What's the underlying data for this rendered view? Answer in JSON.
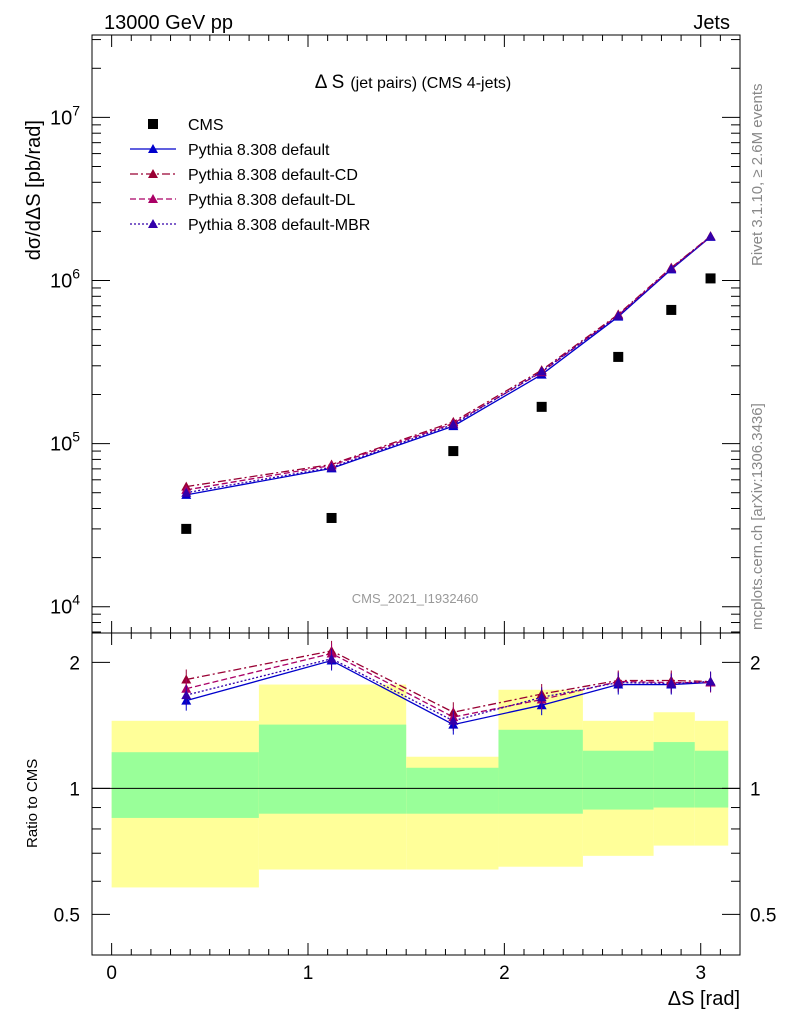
{
  "header": {
    "left": "13000 GeV pp",
    "right": "Jets"
  },
  "side_labels": {
    "rivet": "Rivet 3.1.10, ≥ 2.6M events",
    "mcplots": "mcplots.cern.ch [arXiv:1306.3436]"
  },
  "main_panel": {
    "title_symbol": "Δ S",
    "title_rest": "(jet pairs) (CMS 4-jets)",
    "ylabel": "dσ/dΔS [pb/rad]",
    "watermark": "CMS_2021_I1932460",
    "yticks": [
      {
        "value": 10000,
        "base": "10",
        "exp": "4"
      },
      {
        "value": 100000,
        "base": "10",
        "exp": "5"
      },
      {
        "value": 1000000,
        "base": "10",
        "exp": "6"
      },
      {
        "value": 10000000,
        "base": "10",
        "exp": "7"
      }
    ]
  },
  "ratio_panel": {
    "ylabel": "Ratio to CMS",
    "yticks": [
      {
        "value": 0.5,
        "label": "0.5"
      },
      {
        "value": 1,
        "label": "1"
      },
      {
        "value": 2,
        "label": "2"
      }
    ]
  },
  "xaxis": {
    "label": "ΔS [rad]",
    "ticks": [
      {
        "value": 0,
        "label": "0"
      },
      {
        "value": 1,
        "label": "1"
      },
      {
        "value": 2,
        "label": "2"
      },
      {
        "value": 3,
        "label": "3"
      }
    ]
  },
  "legend": [
    {
      "label": "CMS",
      "color": "#000000",
      "style": "marker"
    },
    {
      "label": "Pythia 8.308 default",
      "color": "#0000cc",
      "style": "solid"
    },
    {
      "label": "Pythia 8.308 default-CD",
      "color": "#990033",
      "style": "dashdot"
    },
    {
      "label": "Pythia 8.308 default-DL",
      "color": "#aa0066",
      "style": "dashed"
    },
    {
      "label": "Pythia 8.308 default-MBR",
      "color": "#3300aa",
      "style": "dotted"
    }
  ],
  "chart_data": {
    "type": "scatter",
    "x_range": [
      -0.1,
      3.2
    ],
    "y_range": [
      6900,
      32000000
    ],
    "y_scale": "log",
    "ratio_range": [
      0.4,
      2.35
    ],
    "ratio_scale": "log",
    "bins": [
      [
        0.0,
        0.75
      ],
      [
        0.75,
        1.5
      ],
      [
        1.5,
        1.97
      ],
      [
        1.97,
        2.4
      ],
      [
        2.4,
        2.76
      ],
      [
        2.76,
        2.97
      ],
      [
        2.97,
        3.14
      ]
    ],
    "x": [
      0.38,
      1.12,
      1.74,
      2.19,
      2.58,
      2.85,
      3.05
    ],
    "data": {
      "name": "CMS",
      "values": [
        30000,
        35000,
        90000,
        168000,
        340000,
        660000,
        1030000
      ]
    },
    "series": [
      {
        "name": "Pythia 8.308 default",
        "values": [
          48500,
          70500,
          128000,
          265000,
          600000,
          1170000,
          1850000
        ],
        "ratio": [
          1.62,
          2.02,
          1.42,
          1.58,
          1.77,
          1.77,
          1.79
        ]
      },
      {
        "name": "Pythia 8.308 default-CD",
        "values": [
          54500,
          74500,
          136000,
          282000,
          620000,
          1200000,
          1870000
        ],
        "ratio": [
          1.82,
          2.13,
          1.52,
          1.68,
          1.81,
          1.81,
          1.8
        ]
      },
      {
        "name": "Pythia 8.308 default-DL",
        "values": [
          52000,
          73500,
          133000,
          274000,
          612000,
          1190000,
          1860000
        ],
        "ratio": [
          1.73,
          2.1,
          1.48,
          1.63,
          1.8,
          1.79,
          1.79
        ]
      },
      {
        "name": "Pythia 8.308 default-MBR",
        "values": [
          50000,
          71500,
          131000,
          277000,
          608000,
          1180000,
          1860000
        ],
        "ratio": [
          1.67,
          2.04,
          1.45,
          1.65,
          1.79,
          1.78,
          1.8
        ]
      }
    ],
    "uncertainty_bands": {
      "inner": [
        [
          0.85,
          1.22
        ],
        [
          0.87,
          1.42
        ],
        [
          0.87,
          1.12
        ],
        [
          0.87,
          1.38
        ],
        [
          0.89,
          1.23
        ],
        [
          0.9,
          1.29
        ],
        [
          0.9,
          1.23
        ]
      ],
      "outer": [
        [
          0.58,
          1.45
        ],
        [
          0.64,
          1.77
        ],
        [
          0.64,
          1.19
        ],
        [
          0.65,
          1.72
        ],
        [
          0.69,
          1.45
        ],
        [
          0.73,
          1.52
        ],
        [
          0.73,
          1.45
        ]
      ]
    }
  }
}
